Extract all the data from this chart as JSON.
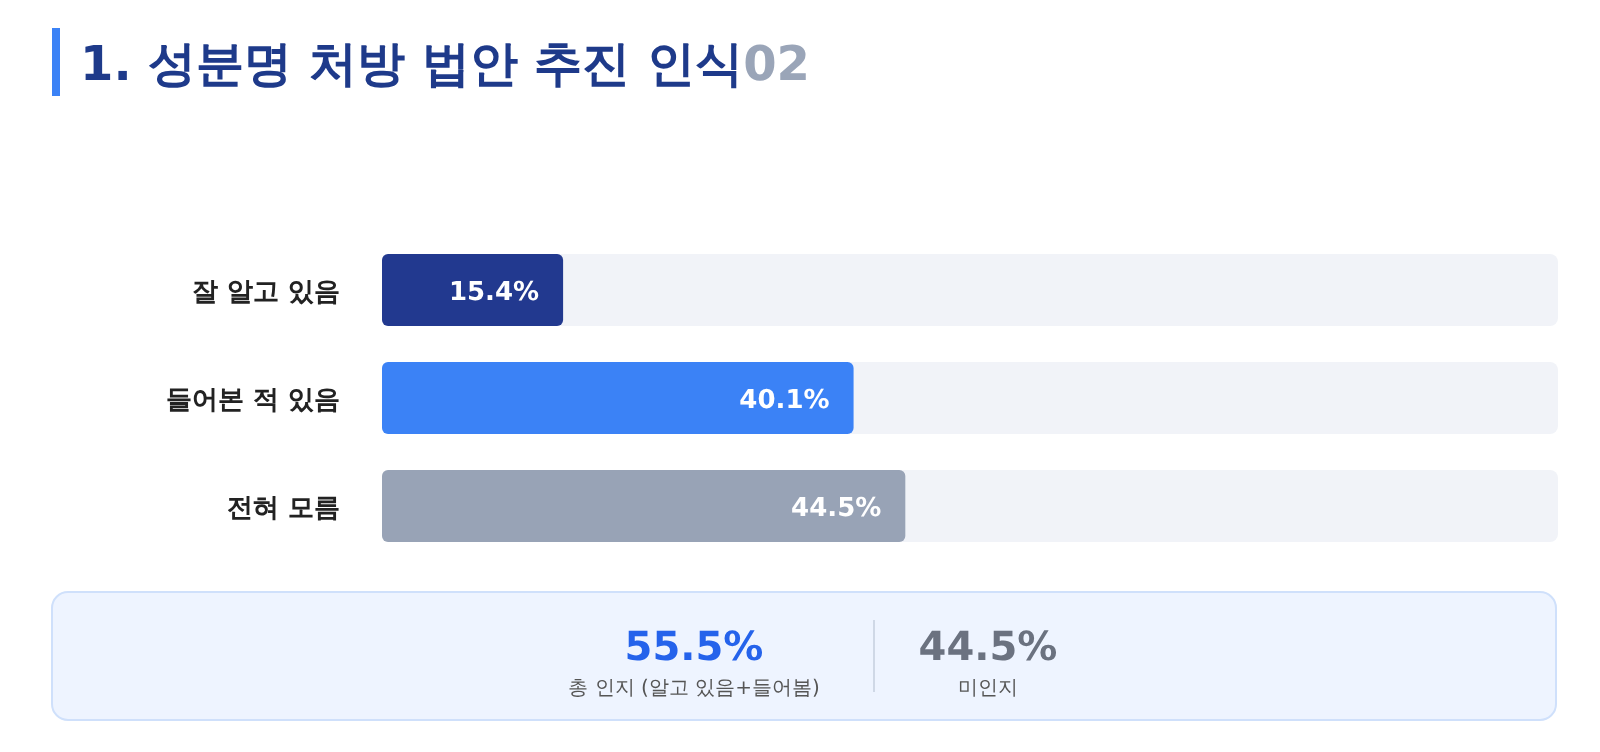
{
  "chart_data": [
    {
      "type": "bar",
      "orientation": "horizontal",
      "title": "1. 성분명 처방 법안 추진 인식",
      "subtitle": "02",
      "categories": [
        "잘 알고 있음",
        "들어본 적 있음",
        "전혀 모름"
      ],
      "values": [
        15.4,
        40.1,
        44.5
      ],
      "colors": [
        "#22398f",
        "#3b82f6",
        "#98a3b6"
      ],
      "value_labels": [
        "15.4%",
        "40.1%",
        "44.5%"
      ],
      "xlim": [
        0,
        100
      ],
      "tick_labels": false,
      "grid": false
    },
    {
      "type": "other",
      "annotations": [
        "55.5%",
        "총 인지 (알고 있음+들어봄)",
        "44.5%",
        "미인지"
      ]
    }
  ]
}
